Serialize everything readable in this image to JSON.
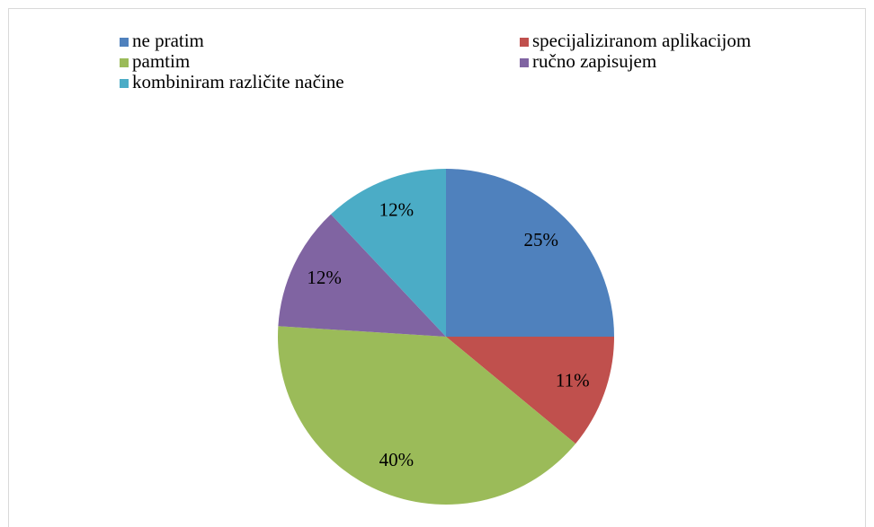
{
  "chart_data": {
    "type": "pie",
    "categories": [
      "ne pratim",
      "specijaliziranom aplikacijom",
      "pamtim",
      "ručno zapisujem",
      "kombiniram različite načine"
    ],
    "values": [
      25,
      11,
      40,
      12,
      12
    ],
    "value_labels": [
      "25%",
      "11%",
      "40%",
      "12%",
      "12%"
    ],
    "colors": [
      "#4f81bd",
      "#c0504d",
      "#9bbb59",
      "#8064a2",
      "#4bacc6"
    ],
    "legend": "top"
  }
}
